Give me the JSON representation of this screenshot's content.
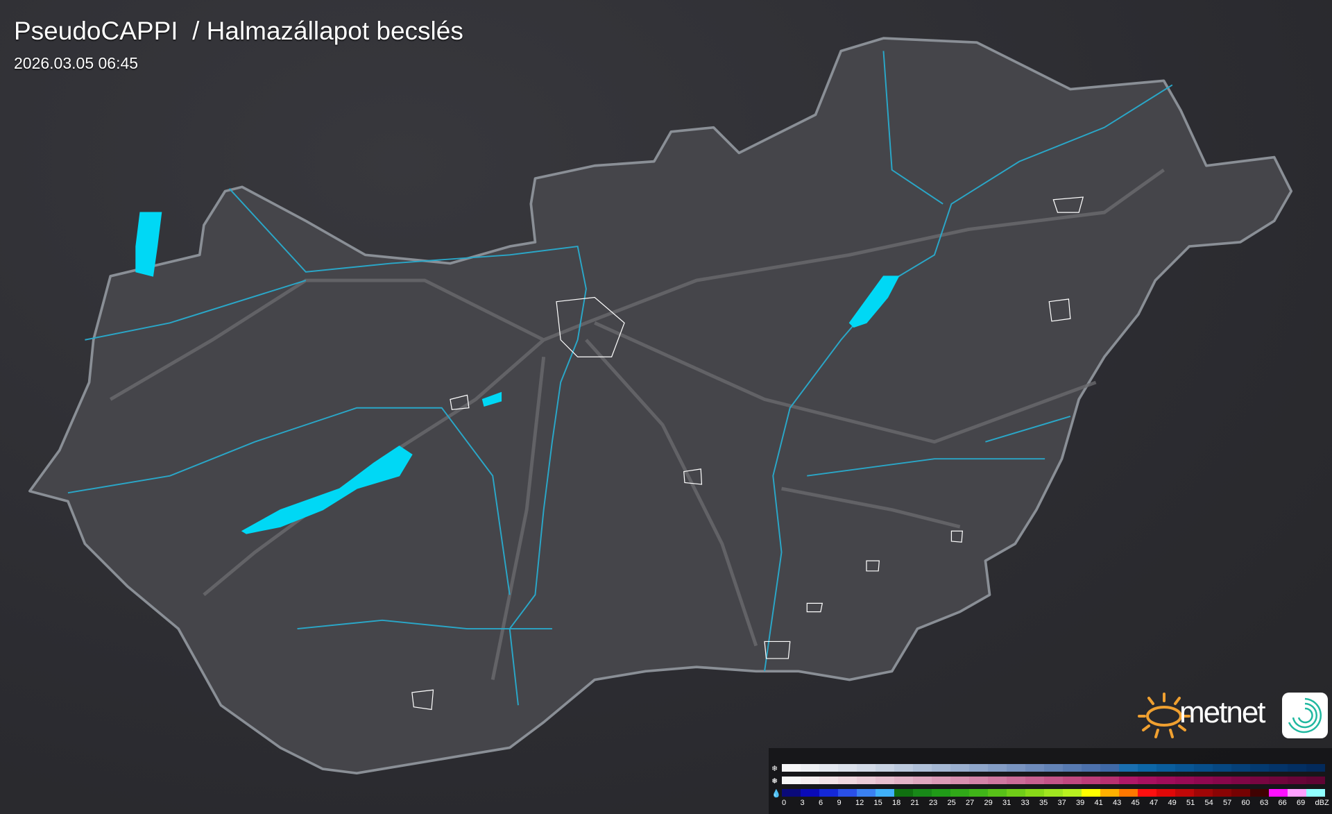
{
  "header": {
    "title": "PseudoCAPPI  / Halmazállapot becslés",
    "timestamp": "2026.03.05 06:45"
  },
  "brand": {
    "name": "metnet",
    "sun_color": "#f0a030"
  },
  "colors": {
    "background": "#2e2e33",
    "country": "#45454a",
    "border": "#8a8f96",
    "river": "#2aa7c8",
    "lake": "#00d8f5",
    "road": "#6a6a6e"
  },
  "legend": {
    "icons": [
      "snow-icon",
      "mixed-icon",
      "rain-icon"
    ],
    "unit": "dBZ",
    "labels": [
      "0",
      "3",
      "6",
      "9",
      "12",
      "15",
      "18",
      "21",
      "23",
      "25",
      "27",
      "29",
      "31",
      "33",
      "35",
      "37",
      "39",
      "41",
      "43",
      "45",
      "47",
      "49",
      "51",
      "54",
      "57",
      "60",
      "63",
      "66",
      "69"
    ],
    "snow_colors": [
      "#f7f7f9",
      "#eef0f4",
      "#e4e8f0",
      "#dce2ec",
      "#d3dbe8",
      "#c8d3e3",
      "#bccade",
      "#b0c1d9",
      "#a5b8d4",
      "#9aafcf",
      "#8fa6ca",
      "#849dc5",
      "#7994c0",
      "#6e8bbb",
      "#6383b6",
      "#577ab1",
      "#4c71ac",
      "#3f69a7",
      "#1a6fb0",
      "#0d66a6",
      "#0a5d9c",
      "#085593",
      "#074e8a",
      "#064781",
      "#054078",
      "#043a70",
      "#043469",
      "#032f62",
      "#032a5b"
    ],
    "mixed_colors": [
      "#f8f8f8",
      "#f6eef0",
      "#f3e3e8",
      "#f0d8e0",
      "#ecccd8",
      "#e8c0d0",
      "#e4b4c8",
      "#e0a8c0",
      "#dc9cb8",
      "#d890b0",
      "#d484a8",
      "#d078a0",
      "#cc6c98",
      "#c86090",
      "#c45488",
      "#c04880",
      "#bc3c78",
      "#b83070",
      "#b01868",
      "#a81060",
      "#a00c5a",
      "#980a55",
      "#900850",
      "#88074b",
      "#800646",
      "#780541",
      "#70053c",
      "#680438",
      "#600434"
    ],
    "rain_colors": [
      "#0a0a7a",
      "#0a0ab8",
      "#1428d8",
      "#2a50e8",
      "#3a80f0",
      "#40b0f8",
      "#107010",
      "#188818",
      "#209a18",
      "#30a818",
      "#40b418",
      "#58c018",
      "#70cc18",
      "#88d818",
      "#a0e420",
      "#b8f020",
      "#ffff00",
      "#ffb000",
      "#ff7800",
      "#ff1010",
      "#e00808",
      "#c00808",
      "#a00606",
      "#8a0404",
      "#760202",
      "#400202",
      "#ff10ff",
      "#ffa0ff",
      "#90ffff"
    ]
  }
}
